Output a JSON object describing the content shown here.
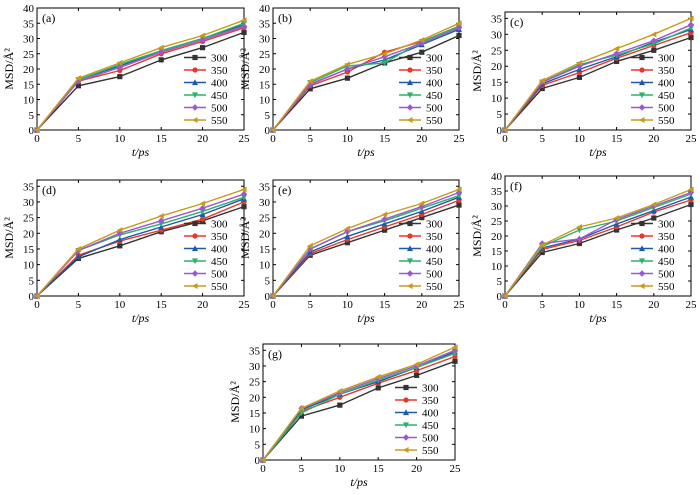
{
  "chart_data": [
    {
      "type": "line",
      "panel_label": "(a)",
      "xlabel": "t/ps",
      "ylabel": "MSD/Å²",
      "xlim": [
        0,
        25
      ],
      "ylim": [
        0,
        40
      ],
      "xticks": [
        "0",
        "5",
        "10",
        "15",
        "20",
        "25"
      ],
      "yticks": [
        "0",
        "5",
        "10",
        "15",
        "20",
        "25",
        "30",
        "35",
        "40"
      ],
      "legend": "right",
      "x": [
        0,
        5,
        10,
        15,
        20,
        25
      ],
      "series": [
        {
          "name": "300",
          "color": "#333333",
          "values": [
            0,
            14.5,
            17.5,
            23,
            27,
            32
          ]
        },
        {
          "name": "350",
          "color": "#e8382a",
          "values": [
            0,
            16,
            19.5,
            25,
            29,
            33.5
          ]
        },
        {
          "name": "400",
          "color": "#1f5aa6",
          "values": [
            0,
            16.5,
            21,
            26,
            30,
            34.5
          ]
        },
        {
          "name": "450",
          "color": "#2bb36a",
          "values": [
            0,
            16.5,
            21.5,
            26,
            30,
            35
          ]
        },
        {
          "name": "500",
          "color": "#9b59d0",
          "values": [
            0,
            16,
            20.5,
            25.5,
            29.5,
            34
          ]
        },
        {
          "name": "550",
          "color": "#c89a1c",
          "values": [
            0,
            17,
            22,
            27,
            31,
            36
          ]
        }
      ]
    },
    {
      "type": "line",
      "panel_label": "(b)",
      "xlabel": "t/ps",
      "ylabel": "MSD/Å²",
      "xlim": [
        0,
        25
      ],
      "ylim": [
        0,
        40
      ],
      "xticks": [
        "0",
        "5",
        "10",
        "15",
        "20",
        "25"
      ],
      "yticks": [
        "0",
        "5",
        "10",
        "15",
        "20",
        "25",
        "30",
        "35",
        "40"
      ],
      "legend": "right",
      "x": [
        0,
        5,
        10,
        15,
        20,
        25
      ],
      "series": [
        {
          "name": "300",
          "color": "#333333",
          "values": [
            0,
            13.5,
            17,
            22,
            25.5,
            31
          ]
        },
        {
          "name": "350",
          "color": "#e8382a",
          "values": [
            0,
            14.5,
            19,
            25.5,
            29,
            34
          ]
        },
        {
          "name": "400",
          "color": "#1f5aa6",
          "values": [
            0,
            15,
            20,
            23,
            28,
            33
          ]
        },
        {
          "name": "450",
          "color": "#2bb36a",
          "values": [
            0,
            15.5,
            21,
            22,
            29,
            34
          ]
        },
        {
          "name": "500",
          "color": "#9b59d0",
          "values": [
            0,
            15,
            20,
            24,
            28.5,
            33.5
          ]
        },
        {
          "name": "550",
          "color": "#c89a1c",
          "values": [
            0,
            16,
            21.5,
            25,
            29.5,
            35
          ]
        }
      ]
    },
    {
      "type": "line",
      "panel_label": "(c)",
      "xlabel": "t/ps",
      "ylabel": "MSD/Å²",
      "xlim": [
        0,
        25
      ],
      "ylim": [
        0,
        37
      ],
      "xticks": [
        "0",
        "5",
        "10",
        "15",
        "20",
        "25"
      ],
      "yticks": [
        "0",
        "5",
        "10",
        "15",
        "20",
        "25",
        "30",
        "35"
      ],
      "legend": "right",
      "x": [
        0,
        5,
        10,
        15,
        20,
        25
      ],
      "series": [
        {
          "name": "300",
          "color": "#333333",
          "values": [
            0,
            13,
            16.5,
            21.5,
            25,
            29
          ]
        },
        {
          "name": "350",
          "color": "#e8382a",
          "values": [
            0,
            14,
            18,
            22.5,
            26.5,
            30.5
          ]
        },
        {
          "name": "400",
          "color": "#1f5aa6",
          "values": [
            0,
            14.5,
            19,
            23,
            27.5,
            31.5
          ]
        },
        {
          "name": "450",
          "color": "#2bb36a",
          "values": [
            0,
            15,
            20.5,
            23.5,
            27,
            32
          ]
        },
        {
          "name": "500",
          "color": "#9b59d0",
          "values": [
            0,
            15,
            20,
            24,
            28,
            33
          ]
        },
        {
          "name": "550",
          "color": "#c89a1c",
          "values": [
            0,
            15.5,
            21,
            25.5,
            30,
            35
          ]
        }
      ]
    },
    {
      "type": "line",
      "panel_label": "(d)",
      "xlabel": "t/ps",
      "ylabel": "MSD/Å²",
      "xlim": [
        0,
        25
      ],
      "ylim": [
        0,
        37
      ],
      "xticks": [
        "0",
        "5",
        "10",
        "15",
        "20",
        "25"
      ],
      "yticks": [
        "0",
        "5",
        "10",
        "15",
        "20",
        "25",
        "30",
        "35"
      ],
      "legend": "right",
      "x": [
        0,
        5,
        10,
        15,
        20,
        25
      ],
      "series": [
        {
          "name": "300",
          "color": "#333333",
          "values": [
            0,
            12,
            16,
            20.5,
            24,
            28.5
          ]
        },
        {
          "name": "350",
          "color": "#e8382a",
          "values": [
            0,
            13,
            17.5,
            21,
            24.5,
            30
          ]
        },
        {
          "name": "400",
          "color": "#1f5aa6",
          "values": [
            0,
            12.5,
            18,
            22,
            26,
            31
          ]
        },
        {
          "name": "450",
          "color": "#2bb36a",
          "values": [
            0,
            14.5,
            19.5,
            23,
            27,
            31.5
          ]
        },
        {
          "name": "500",
          "color": "#9b59d0",
          "values": [
            0,
            14.5,
            20,
            24,
            28,
            32.5
          ]
        },
        {
          "name": "550",
          "color": "#c89a1c",
          "values": [
            0,
            15,
            21,
            25.5,
            29.5,
            34
          ]
        }
      ]
    },
    {
      "type": "line",
      "panel_label": "(e)",
      "xlabel": "t/ps",
      "ylabel": "MSD/Å²",
      "xlim": [
        0,
        25
      ],
      "ylim": [
        0,
        37
      ],
      "xticks": [
        "0",
        "5",
        "10",
        "15",
        "20",
        "25"
      ],
      "yticks": [
        "0",
        "5",
        "10",
        "15",
        "20",
        "25",
        "30",
        "35"
      ],
      "legend": "right",
      "x": [
        0,
        5,
        10,
        15,
        20,
        25
      ],
      "series": [
        {
          "name": "300",
          "color": "#333333",
          "values": [
            0,
            13,
            17,
            21,
            25,
            29
          ]
        },
        {
          "name": "350",
          "color": "#e8382a",
          "values": [
            0,
            13.5,
            18,
            22,
            26,
            30.5
          ]
        },
        {
          "name": "400",
          "color": "#1f5aa6",
          "values": [
            0,
            14,
            19,
            23,
            27,
            31.5
          ]
        },
        {
          "name": "450",
          "color": "#2bb36a",
          "values": [
            0,
            15,
            20.5,
            24,
            28,
            32
          ]
        },
        {
          "name": "500",
          "color": "#9b59d0",
          "values": [
            0,
            15,
            20.5,
            24.5,
            28.5,
            33
          ]
        },
        {
          "name": "550",
          "color": "#c89a1c",
          "values": [
            0,
            16,
            21.5,
            26,
            29.5,
            34
          ]
        }
      ]
    },
    {
      "type": "line",
      "panel_label": "(f)",
      "xlabel": "t/ps",
      "ylabel": "MSD/Å²",
      "xlim": [
        0,
        25
      ],
      "ylim": [
        0,
        40
      ],
      "xticks": [
        "0",
        "5",
        "10",
        "15",
        "20",
        "25"
      ],
      "yticks": [
        "0",
        "5",
        "10",
        "15",
        "20",
        "25",
        "30",
        "35",
        "40"
      ],
      "legend": "right",
      "x": [
        0,
        5,
        10,
        15,
        20,
        25
      ],
      "series": [
        {
          "name": "300",
          "color": "#333333",
          "values": [
            0,
            14.5,
            17.5,
            22,
            26,
            30.5
          ]
        },
        {
          "name": "350",
          "color": "#e8382a",
          "values": [
            0,
            15.5,
            18.5,
            23,
            28,
            32
          ]
        },
        {
          "name": "400",
          "color": "#1f5aa6",
          "values": [
            0,
            16,
            19,
            24,
            28.5,
            33
          ]
        },
        {
          "name": "450",
          "color": "#2bb36a",
          "values": [
            0,
            16.5,
            22,
            25,
            29.5,
            34
          ]
        },
        {
          "name": "500",
          "color": "#9b59d0",
          "values": [
            0,
            17.5,
            19,
            25.5,
            30,
            34.5
          ]
        },
        {
          "name": "550",
          "color": "#c89a1c",
          "values": [
            0,
            17,
            23,
            26,
            30.5,
            35.5
          ]
        }
      ]
    },
    {
      "type": "line",
      "panel_label": "(g)",
      "xlabel": "t/ps",
      "ylabel": "MSD/Å²",
      "xlim": [
        0,
        25
      ],
      "ylim": [
        0,
        37
      ],
      "xticks": [
        "0",
        "5",
        "10",
        "15",
        "20",
        "25"
      ],
      "yticks": [
        "0",
        "5",
        "10",
        "15",
        "20",
        "25",
        "30",
        "35"
      ],
      "legend": "right",
      "x": [
        0,
        5,
        10,
        15,
        20,
        25
      ],
      "series": [
        {
          "name": "300",
          "color": "#333333",
          "values": [
            0,
            14,
            17.5,
            23,
            27,
            31.5
          ]
        },
        {
          "name": "350",
          "color": "#e8382a",
          "values": [
            0,
            15.5,
            20,
            24.5,
            28.5,
            33
          ]
        },
        {
          "name": "400",
          "color": "#1f5aa6",
          "values": [
            0,
            16,
            21,
            25,
            29.5,
            34.5
          ]
        },
        {
          "name": "450",
          "color": "#2bb36a",
          "values": [
            0,
            15,
            21,
            25.5,
            29.5,
            34
          ]
        },
        {
          "name": "500",
          "color": "#9b59d0",
          "values": [
            0,
            16.5,
            21.5,
            26,
            30,
            35
          ]
        },
        {
          "name": "550",
          "color": "#c89a1c",
          "values": [
            0,
            16.5,
            22,
            26.5,
            30.5,
            36
          ]
        }
      ]
    }
  ]
}
